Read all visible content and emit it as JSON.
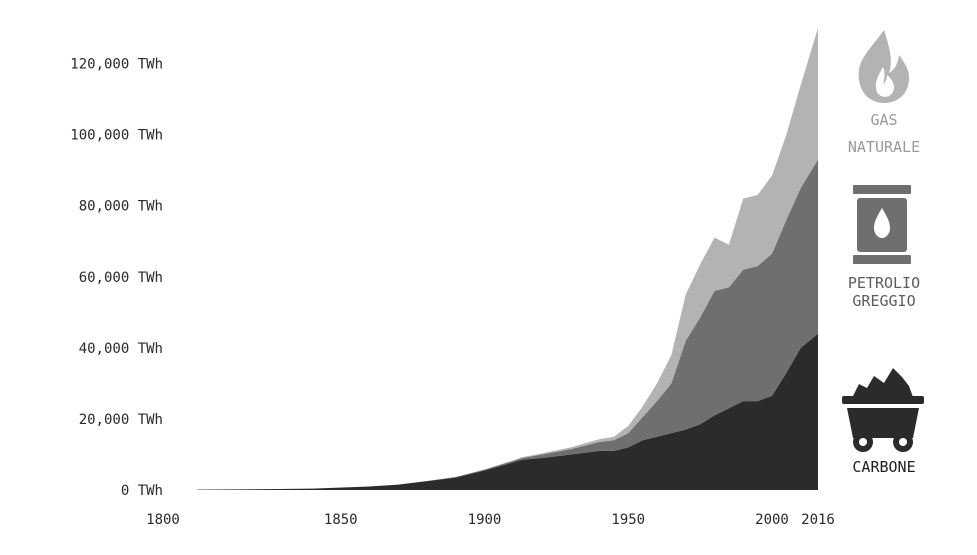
{
  "chart_data": {
    "type": "area",
    "stacked": true,
    "title": "",
    "xlabel": "",
    "ylabel": "",
    "xlim": [
      1800,
      2016
    ],
    "ylim": [
      0,
      130000
    ],
    "x_ticks": [
      1800,
      1850,
      1900,
      1950,
      2000,
      2016
    ],
    "x_tick_labels": [
      "1800",
      "1850",
      "1900",
      "1950",
      "2000",
      "2016"
    ],
    "y_ticks": [
      0,
      20000,
      40000,
      60000,
      80000,
      100000,
      120000
    ],
    "y_tick_labels": [
      "0 TWh",
      "20,000 TWh",
      "40,000 TWh",
      "60,000 TWh",
      "80,000 TWh",
      "100,000 TWh",
      "120,000 TWh"
    ],
    "grid": false,
    "legend_position": "right",
    "x": [
      1800,
      1820,
      1840,
      1860,
      1870,
      1880,
      1890,
      1900,
      1910,
      1913,
      1920,
      1930,
      1940,
      1945,
      1950,
      1955,
      1960,
      1965,
      1970,
      1975,
      1980,
      1985,
      1990,
      1995,
      2000,
      2005,
      2010,
      2016
    ],
    "series": [
      {
        "name": "CARBONE",
        "color": "#2b2b2b",
        "values": [
          100,
          200,
          400,
          1000,
          1500,
          2500,
          3500,
          5500,
          7800,
          8500,
          9000,
          10000,
          11000,
          11000,
          12000,
          14000,
          15000,
          16000,
          17000,
          18500,
          21000,
          23000,
          25000,
          25000,
          26500,
          33000,
          40000,
          44000
        ]
      },
      {
        "name": "PETROLIO GREGGIO",
        "color": "#6f6f6f",
        "values": [
          0,
          0,
          0,
          0,
          0,
          50,
          150,
          250,
          400,
          500,
          1000,
          1500,
          2500,
          3000,
          4000,
          6500,
          10000,
          14000,
          25000,
          30000,
          35000,
          34000,
          37000,
          38000,
          40000,
          43000,
          45000,
          49000
        ]
      },
      {
        "name": "GAS NATURALE",
        "color": "#b3b3b3",
        "values": [
          0,
          0,
          0,
          0,
          0,
          0,
          0,
          50,
          150,
          200,
          300,
          500,
          800,
          1000,
          2000,
          3000,
          5000,
          8000,
          13000,
          15000,
          15000,
          12000,
          20000,
          20000,
          22000,
          24000,
          29000,
          37000
        ]
      }
    ]
  },
  "legend": [
    {
      "key": "gas",
      "icon": "flame-icon",
      "lines": [
        "GAS",
        "NATURALE"
      ],
      "color": "#b3b3b3",
      "label_color": "#9a9a9a"
    },
    {
      "key": "oil",
      "icon": "oil-barrel-icon",
      "lines": [
        "PETROLIO",
        "GREGGIO"
      ],
      "color": "#6f6f6f",
      "label_color": "#5c5c5c"
    },
    {
      "key": "coal",
      "icon": "coal-cart-icon",
      "lines": [
        "CARBONE"
      ],
      "color": "#2b2b2b",
      "label_color": "#1e1e1e"
    }
  ]
}
